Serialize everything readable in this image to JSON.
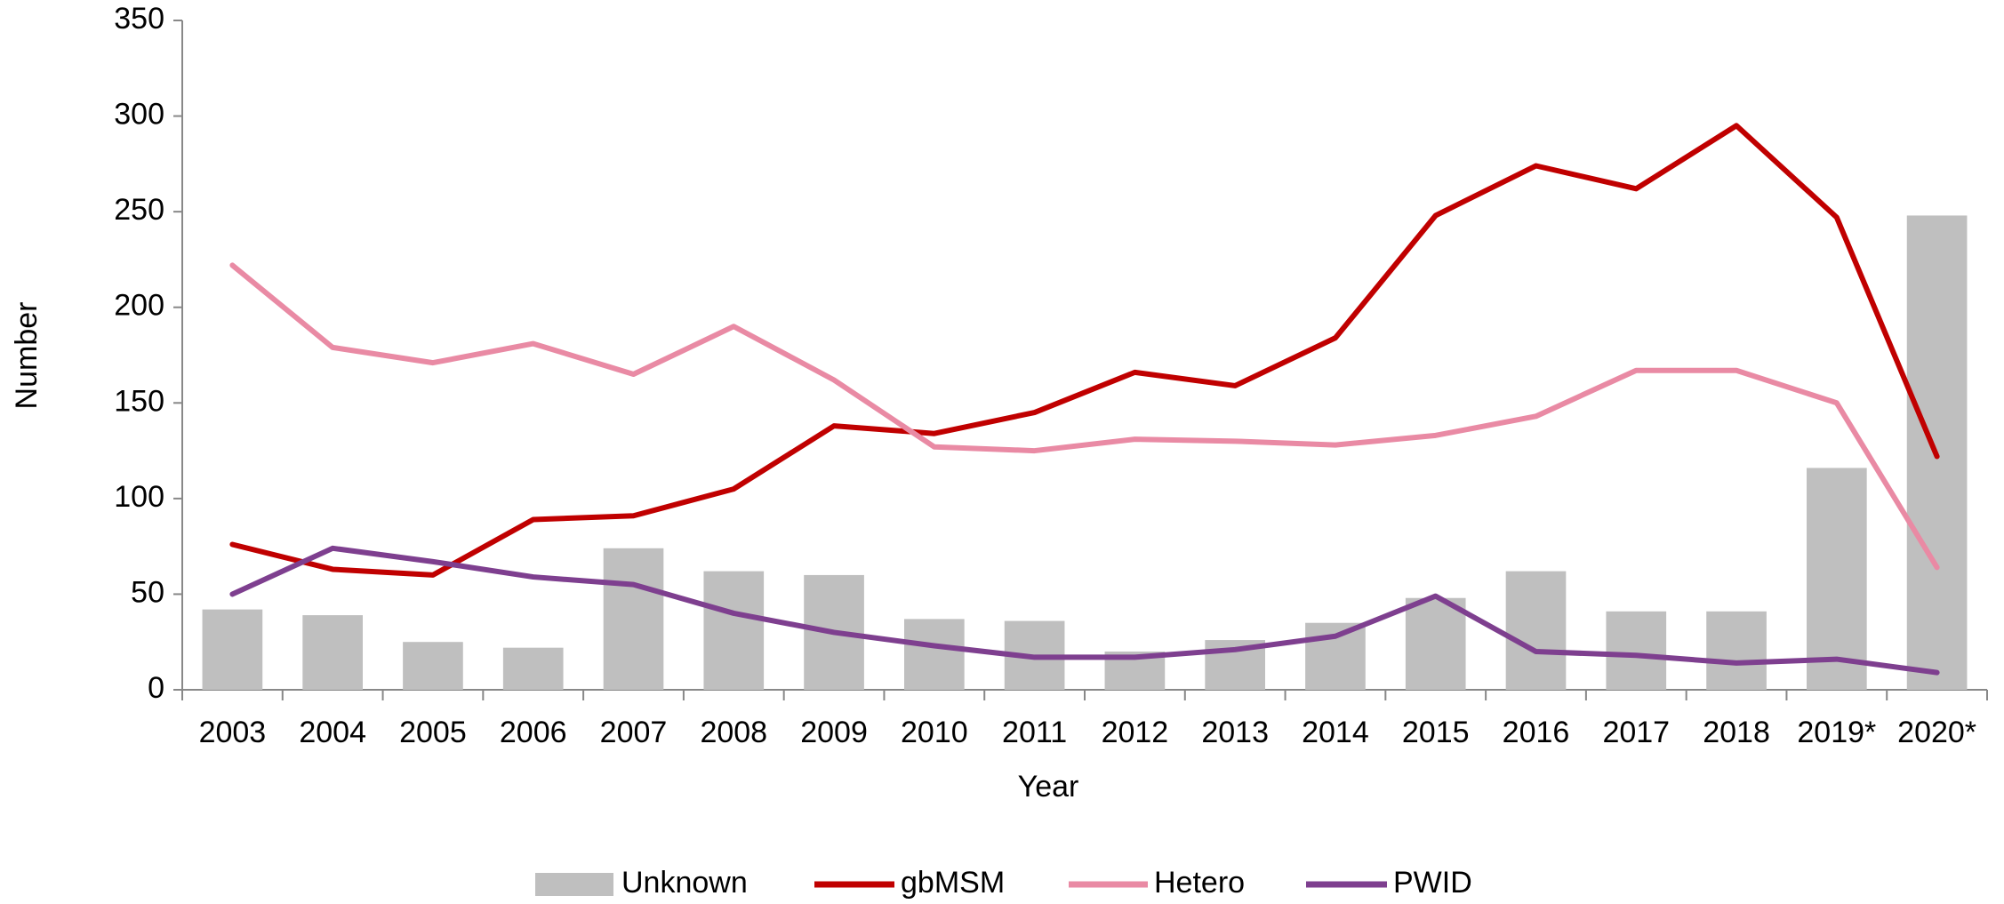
{
  "chart_data": {
    "type": "bar",
    "x_label": "Year",
    "y_label": "Number",
    "categories": [
      "2003",
      "2004",
      "2005",
      "2006",
      "2007",
      "2008",
      "2009",
      "2010",
      "2011",
      "2012",
      "2013",
      "2014",
      "2015",
      "2016",
      "2017",
      "2018",
      "2019*",
      "2020*"
    ],
    "series": [
      {
        "name": "Unknown",
        "type": "bar",
        "color": "#bfbfbf",
        "values": [
          42,
          39,
          25,
          22,
          74,
          62,
          60,
          37,
          36,
          20,
          26,
          35,
          48,
          62,
          41,
          41,
          116,
          248
        ]
      },
      {
        "name": "gbMSM",
        "type": "line",
        "color": "#c00000",
        "values": [
          76,
          63,
          60,
          89,
          91,
          105,
          138,
          134,
          145,
          166,
          159,
          184,
          248,
          274,
          262,
          295,
          247,
          122
        ]
      },
      {
        "name": "Hetero",
        "type": "line",
        "color": "#e98aa4",
        "values": [
          222,
          179,
          171,
          181,
          165,
          190,
          162,
          127,
          125,
          131,
          130,
          128,
          133,
          143,
          167,
          167,
          150,
          64
        ]
      },
      {
        "name": "PWID",
        "type": "line",
        "color": "#7e3f8f",
        "values": [
          50,
          74,
          67,
          59,
          55,
          40,
          30,
          23,
          17,
          17,
          21,
          28,
          49,
          20,
          18,
          14,
          16,
          9
        ]
      }
    ],
    "ylim": [
      0,
      350
    ],
    "yticks": [
      0,
      50,
      100,
      150,
      200,
      250,
      300,
      350
    ],
    "legend": "bottom",
    "grid": false
  }
}
